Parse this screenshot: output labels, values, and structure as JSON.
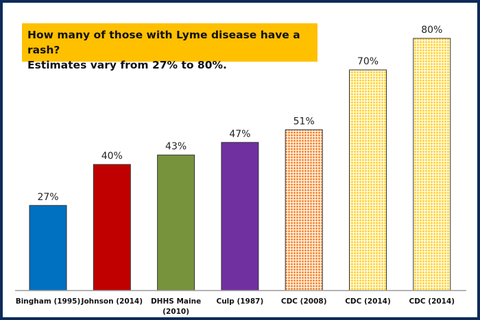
{
  "chart_data": {
    "type": "bar",
    "title": "How many of those with Lyme disease have a rash?",
    "subtitle": "Estimates vary from 27% to 80%.",
    "categories": [
      "Bingham (1995)",
      "Johnson (2014)",
      "DHHS Maine (2010)",
      "Culp (1987)",
      "CDC (2008)",
      "CDC (2014)",
      "CDC (2014)"
    ],
    "values": [
      27,
      40,
      43,
      47,
      51,
      70,
      80
    ],
    "data_labels": [
      "27%",
      "40%",
      "43%",
      "47%",
      "51%",
      "70%",
      "80%"
    ],
    "colors": [
      "#0070c0",
      "#c00000",
      "#77933c",
      "#7030a0",
      "#f79646",
      "#ffd84a",
      "#ffd84a"
    ],
    "patterned": [
      false,
      false,
      false,
      false,
      true,
      true,
      true
    ],
    "ylim": [
      0,
      80
    ],
    "xlabel": "",
    "ylabel": "",
    "grid": false
  }
}
